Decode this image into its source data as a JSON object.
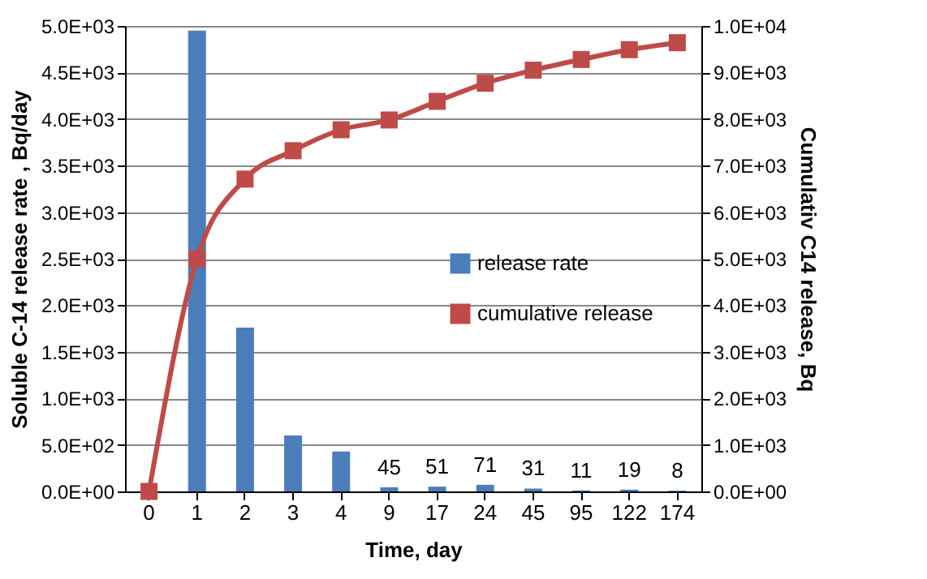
{
  "chart_data": {
    "type": "bar",
    "xlabel": "Time, day",
    "ylabel": "Soluble C-14 release rate , Bq/day",
    "y2label": "Cumulativ C14 release, Bq",
    "categories": [
      "0",
      "1",
      "2",
      "3",
      "4",
      "9",
      "17",
      "24",
      "45",
      "95",
      "122",
      "174"
    ],
    "series": [
      {
        "name": "release rate",
        "color": "#4a7ebb",
        "values": [
          null,
          4950,
          1760,
          600,
          430,
          45,
          51,
          71,
          31,
          11,
          19,
          8
        ],
        "value_labels": [
          null,
          null,
          null,
          null,
          null,
          "45",
          "51",
          "71",
          "31",
          "11",
          "19",
          "8"
        ]
      },
      {
        "name": "cumulative release",
        "type": "line",
        "axis": "y2",
        "color": "#be4b48",
        "marker": "square",
        "values": [
          0,
          5000,
          6710,
          7320,
          7770,
          7980,
          8380,
          8770,
          9050,
          9280,
          9490,
          9640
        ]
      }
    ],
    "ylim": [
      0,
      5000
    ],
    "yticks": [
      {
        "value": 0,
        "label": "0.0E+00"
      },
      {
        "value": 500,
        "label": "5.0E+02"
      },
      {
        "value": 1000,
        "label": "1.0E+03"
      },
      {
        "value": 1500,
        "label": "1.5E+03"
      },
      {
        "value": 2000,
        "label": "2.0E+03"
      },
      {
        "value": 2500,
        "label": "2.5E+03"
      },
      {
        "value": 3000,
        "label": "3.0E+03"
      },
      {
        "value": 3500,
        "label": "3.5E+03"
      },
      {
        "value": 4000,
        "label": "4.0E+03"
      },
      {
        "value": 4500,
        "label": "4.5E+03"
      },
      {
        "value": 5000,
        "label": "5.0E+03"
      }
    ],
    "y2lim": [
      0,
      10000
    ],
    "y2ticks": [
      {
        "value": 0,
        "label": "0.0E+00"
      },
      {
        "value": 1000,
        "label": "1.0E+03"
      },
      {
        "value": 2000,
        "label": "2.0E+03"
      },
      {
        "value": 3000,
        "label": "3.0E+03"
      },
      {
        "value": 4000,
        "label": "4.0E+03"
      },
      {
        "value": 5000,
        "label": "5.0E+03"
      },
      {
        "value": 6000,
        "label": "6.0E+03"
      },
      {
        "value": 7000,
        "label": "7.0E+03"
      },
      {
        "value": 8000,
        "label": "8.0E+03"
      },
      {
        "value": 9000,
        "label": "9.0E+03"
      },
      {
        "value": 10000,
        "label": "1.0E+04"
      }
    ],
    "grid": "y",
    "legend": "right"
  }
}
